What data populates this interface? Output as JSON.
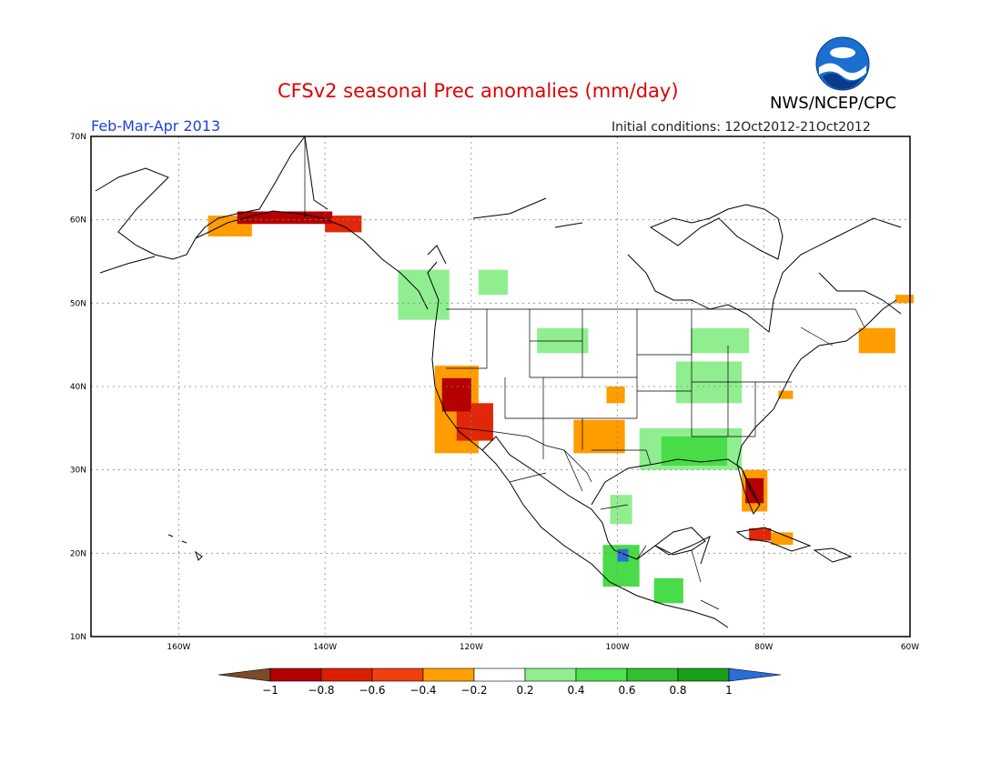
{
  "header": {
    "title": "CFSv2 seasonal Prec anomalies (mm/day)",
    "period": "Feb-Mar-Apr 2013",
    "initial_conditions": "Initial conditions: 12Oct2012-21Oct2012",
    "agency": "NWS/NCEP/CPC",
    "logo_text": "NOAA"
  },
  "axes": {
    "lat_labels": [
      "70N",
      "60N",
      "50N",
      "40N",
      "30N",
      "20N",
      "10N"
    ],
    "lon_labels": [
      "160W",
      "140W",
      "120W",
      "100W",
      "80W",
      "60W"
    ]
  },
  "colorbar": {
    "labels": [
      "-1",
      "-0.8",
      "-0.6",
      "-0.4",
      "-0.2",
      "0.2",
      "0.4",
      "0.6",
      "0.8",
      "1"
    ],
    "colors": [
      "#7a4a2a",
      "#b00000",
      "#d82000",
      "#f04010",
      "#ffa000",
      "#ffffff",
      "#90ee90",
      "#50e050",
      "#30c030",
      "#18a018",
      "#2a6cd8"
    ]
  },
  "map": {
    "extent": {
      "lon_min": -172,
      "lon_max": -60,
      "lat_min": 10,
      "lat_max": 70
    },
    "anomaly_colors": {
      "-1": "#6e3a1f",
      "-0.8": "#b40000",
      "-0.6": "#e02808",
      "-0.4": "#ff9c00",
      "0.4": "#90ee90",
      "0.6": "#48dc48",
      "0.8": "#28b428",
      "1": "#2a6cd8"
    },
    "anomaly_regions": [
      {
        "name": "alaska-south-coast",
        "value": -0.8,
        "lon": [
          -152,
          -139
        ],
        "lat": [
          59.5,
          61
        ]
      },
      {
        "name": "alaska-southeast",
        "value": -0.6,
        "lon": [
          -140,
          -135
        ],
        "lat": [
          58.5,
          60.5
        ]
      },
      {
        "name": "alaska-kenai",
        "value": -0.4,
        "lon": [
          -156,
          -150
        ],
        "lat": [
          58,
          60.5
        ]
      },
      {
        "name": "bc-coast",
        "value": 0.4,
        "lon": [
          -130,
          -123
        ],
        "lat": [
          48,
          54
        ]
      },
      {
        "name": "alberta",
        "value": 0.4,
        "lon": [
          -119,
          -115
        ],
        "lat": [
          51,
          54
        ]
      },
      {
        "name": "california-coast",
        "value": -0.8,
        "lon": [
          -124,
          -120
        ],
        "lat": [
          37,
          41
        ]
      },
      {
        "name": "california-south",
        "value": -0.6,
        "lon": [
          -122,
          -117
        ],
        "lat": [
          33.5,
          38
        ]
      },
      {
        "name": "california-outer",
        "value": -0.4,
        "lon": [
          -125,
          -119
        ],
        "lat": [
          32,
          42.5
        ]
      },
      {
        "name": "kansas",
        "value": -0.4,
        "lon": [
          -101.5,
          -99
        ],
        "lat": [
          38,
          40
        ]
      },
      {
        "name": "texas-panhandle",
        "value": -0.4,
        "lon": [
          -106,
          -99
        ],
        "lat": [
          32,
          36
        ]
      },
      {
        "name": "gulf-coast",
        "value": 0.4,
        "lon": [
          -97,
          -83
        ],
        "lat": [
          30,
          35
        ]
      },
      {
        "name": "gulf-coast-core",
        "value": 0.6,
        "lon": [
          -94,
          -85
        ],
        "lat": [
          30.5,
          34
        ]
      },
      {
        "name": "ohio-valley",
        "value": 0.4,
        "lon": [
          -92,
          -83
        ],
        "lat": [
          38,
          43
        ]
      },
      {
        "name": "great-lakes",
        "value": 0.4,
        "lon": [
          -90,
          -82
        ],
        "lat": [
          44,
          47
        ]
      },
      {
        "name": "florida",
        "value": -0.8,
        "lon": [
          -82.5,
          -80
        ],
        "lat": [
          26,
          29
        ]
      },
      {
        "name": "florida-outer",
        "value": -0.4,
        "lon": [
          -83,
          -79.5
        ],
        "lat": [
          25,
          30
        ]
      },
      {
        "name": "mid-atlantic",
        "value": -0.4,
        "lon": [
          -78,
          -76
        ],
        "lat": [
          38.5,
          39.5
        ]
      },
      {
        "name": "cuba",
        "value": -0.6,
        "lon": [
          -82,
          -79
        ],
        "lat": [
          21.5,
          23
        ]
      },
      {
        "name": "cuba-east",
        "value": -0.4,
        "lon": [
          -79,
          -76
        ],
        "lat": [
          21,
          22.5
        ]
      },
      {
        "name": "nova-scotia",
        "value": -0.4,
        "lon": [
          -67,
          -62
        ],
        "lat": [
          44,
          47
        ]
      },
      {
        "name": "labrador-south",
        "value": -0.4,
        "lon": [
          -62,
          -59.5
        ],
        "lat": [
          50,
          51
        ]
      },
      {
        "name": "mexico-northeast",
        "value": 0.4,
        "lon": [
          -101,
          -98
        ],
        "lat": [
          23.5,
          27
        ]
      },
      {
        "name": "mexico-central",
        "value": 0.6,
        "lon": [
          -102,
          -97
        ],
        "lat": [
          16,
          21
        ]
      },
      {
        "name": "mexico-veracruz",
        "value": 1,
        "lon": [
          -100,
          -98.5
        ],
        "lat": [
          19,
          20.5
        ]
      },
      {
        "name": "central-america",
        "value": 0.6,
        "lon": [
          -95,
          -91
        ],
        "lat": [
          14,
          17
        ]
      },
      {
        "name": "dakotas",
        "value": 0.4,
        "lon": [
          -111,
          -104
        ],
        "lat": [
          44,
          47
        ]
      }
    ]
  }
}
